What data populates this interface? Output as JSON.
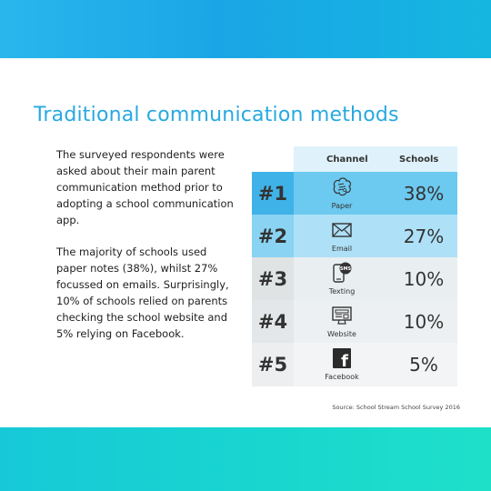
{
  "title": "Traditional communication methods",
  "paragraphs": [
    "The surveyed respondents were asked about their main parent communication method prior to adopting a school communication app.",
    "The majority of schools used paper notes (38%), whilst 27% focussed on emails. Surprisingly, 10% of schools relied on parents checking the school website and 5% relying on Facebook."
  ],
  "table": {
    "headers": {
      "channel": "Channel",
      "schools": "Schools"
    },
    "rows": [
      {
        "rank": "#1",
        "channel": "Paper",
        "icon": "paper-icon",
        "value": "38%"
      },
      {
        "rank": "#2",
        "channel": "Email",
        "icon": "envelope-icon",
        "value": "27%"
      },
      {
        "rank": "#3",
        "channel": "Texting",
        "icon": "sms-phone-icon",
        "icon_text": "SMS",
        "value": "10%"
      },
      {
        "rank": "#4",
        "channel": "Website",
        "icon": "monitor-icon",
        "value": "10%"
      },
      {
        "rank": "#5",
        "channel": "Facebook",
        "icon": "facebook-icon",
        "icon_text": "f",
        "value": "5%"
      }
    ]
  },
  "source": "Source: School Stream School Survey 2016",
  "colors": {
    "title": "#27a9e1",
    "band_top": "#1aa6e6",
    "band_bottom": "#19d6cf",
    "row1": "#6cc9ef",
    "row2": "#aee1f7"
  }
}
